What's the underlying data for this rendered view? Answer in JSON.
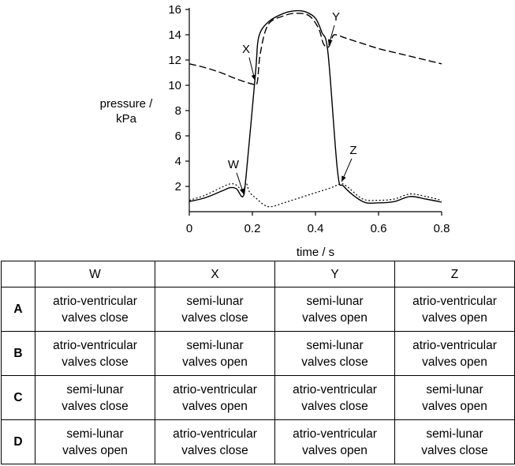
{
  "chart_data": {
    "type": "line",
    "xlabel": "time / s",
    "ylabel": [
      "pressure /",
      "kPa"
    ],
    "xlim": [
      0,
      0.8
    ],
    "ylim": [
      0,
      16
    ],
    "x_ticks": [
      0,
      0.2,
      0.4,
      0.6,
      0.8
    ],
    "x_tick_labels": [
      "0",
      "0.2",
      "0.4",
      "0.6",
      "0.8"
    ],
    "y_ticks": [
      2,
      4,
      6,
      8,
      10,
      12,
      14,
      16
    ],
    "y_tick_labels": [
      "2",
      "4",
      "6",
      "8",
      "10",
      "12",
      "14",
      "16"
    ],
    "grid": false,
    "legend": "none",
    "series": [
      {
        "style": "solid",
        "x": [
          0,
          0.05,
          0.1,
          0.13,
          0.15,
          0.17,
          0.18,
          0.21,
          0.22,
          0.25,
          0.3,
          0.34,
          0.37,
          0.4,
          0.42,
          0.44,
          0.47,
          0.49,
          0.55,
          0.6,
          0.65,
          0.7,
          0.75,
          0.8
        ],
        "y": [
          0.8,
          1.1,
          1.6,
          1.9,
          1.8,
          1.2,
          2.8,
          11.0,
          13.8,
          15.0,
          15.7,
          15.9,
          15.8,
          15.3,
          14.2,
          12.5,
          3.2,
          2.0,
          0.8,
          0.7,
          0.8,
          1.2,
          1.0,
          0.75
        ]
      },
      {
        "style": "dashed",
        "x": [
          0,
          0.05,
          0.1,
          0.15,
          0.2,
          0.215,
          0.225,
          0.25,
          0.3,
          0.34,
          0.38,
          0.41,
          0.425,
          0.44,
          0.45,
          0.46,
          0.5,
          0.55,
          0.6,
          0.65,
          0.7,
          0.75,
          0.8
        ],
        "y": [
          11.7,
          11.4,
          11.0,
          10.5,
          10.1,
          10.2,
          12.5,
          14.8,
          15.5,
          15.7,
          15.5,
          14.5,
          13.3,
          13.0,
          13.5,
          14.0,
          13.7,
          13.3,
          12.9,
          12.6,
          12.3,
          12.0,
          11.7
        ]
      },
      {
        "style": "dotted",
        "x": [
          0,
          0.05,
          0.1,
          0.13,
          0.15,
          0.17,
          0.18,
          0.19,
          0.21,
          0.25,
          0.3,
          0.35,
          0.4,
          0.45,
          0.48,
          0.5,
          0.55,
          0.6,
          0.65,
          0.7,
          0.75,
          0.8
        ],
        "y": [
          0.9,
          1.3,
          1.9,
          2.2,
          2.1,
          1.6,
          2.3,
          1.6,
          1.1,
          0.4,
          0.7,
          1.1,
          1.5,
          1.9,
          2.2,
          2.0,
          1.0,
          0.9,
          1.0,
          1.4,
          1.2,
          0.9
        ]
      }
    ],
    "annotations": [
      {
        "label": "W",
        "x": 0.175,
        "y": 1.2
      },
      {
        "label": "X",
        "x": 0.21,
        "y": 10.2
      },
      {
        "label": "Y",
        "x": 0.44,
        "y": 13.0
      },
      {
        "label": "Z",
        "x": 0.48,
        "y": 2.2
      }
    ]
  },
  "table": {
    "headers": [
      "W",
      "X",
      "Y",
      "Z"
    ],
    "rows": [
      {
        "key": "A",
        "cells": [
          [
            "atrio-ventricular",
            "valves close"
          ],
          [
            "semi-lunar",
            "valves close"
          ],
          [
            "semi-lunar",
            "valves open"
          ],
          [
            "atrio-ventricular",
            "valves open"
          ]
        ]
      },
      {
        "key": "B",
        "cells": [
          [
            "atrio-ventricular",
            "valves close"
          ],
          [
            "semi-lunar",
            "valves open"
          ],
          [
            "semi-lunar",
            "valves close"
          ],
          [
            "atrio-ventricular",
            "valves open"
          ]
        ]
      },
      {
        "key": "C",
        "cells": [
          [
            "semi-lunar",
            "valves close"
          ],
          [
            "atrio-ventricular",
            "valves open"
          ],
          [
            "atrio-ventricular",
            "valves close"
          ],
          [
            "semi-lunar",
            "valves open"
          ]
        ]
      },
      {
        "key": "D",
        "cells": [
          [
            "semi-lunar",
            "valves open"
          ],
          [
            "atrio-ventricular",
            "valves close"
          ],
          [
            "atrio-ventricular",
            "valves open"
          ],
          [
            "semi-lunar",
            "valves close"
          ]
        ]
      }
    ]
  }
}
